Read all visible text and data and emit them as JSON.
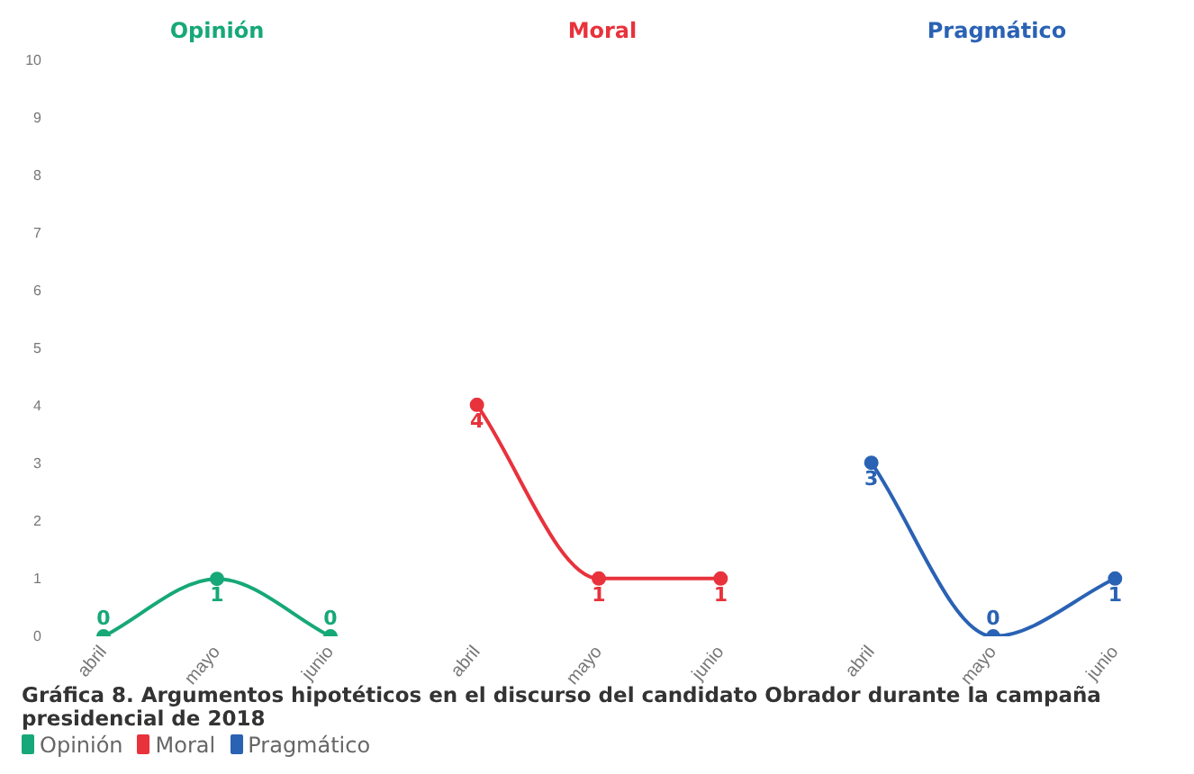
{
  "chart_data": [
    {
      "type": "line",
      "title": "Opinión",
      "categories": [
        "abril",
        "mayo",
        "junio"
      ],
      "series": [
        {
          "name": "Opinión",
          "color": "#16a878",
          "values": [
            0,
            1,
            0
          ]
        }
      ],
      "ylim": [
        0,
        10
      ],
      "yticks": [
        0,
        1,
        2,
        3,
        4,
        5,
        6,
        7,
        8,
        9,
        10
      ],
      "grid": false,
      "marker": "circle",
      "data_labels": true,
      "legend": "bottom",
      "annotations": [
        "Gráfica 8. Argumentos hipotéticos en el discurso del candidato Obrador durante la campaña presidencial de 2018"
      ]
    },
    {
      "type": "line",
      "title": "Moral",
      "categories": [
        "abril",
        "mayo",
        "junio"
      ],
      "series": [
        {
          "name": "Moral",
          "color": "#e8323c",
          "values": [
            4,
            1,
            1
          ]
        }
      ],
      "ylim": [
        0,
        10
      ],
      "yticks": [
        0,
        1,
        2,
        3,
        4,
        5,
        6,
        7,
        8,
        9,
        10
      ],
      "grid": false,
      "marker": "circle",
      "data_labels": true,
      "legend": "bottom",
      "tick_labels": "x"
    },
    {
      "type": "line",
      "title": "Pragmático",
      "categories": [
        "abril",
        "mayo",
        "junio"
      ],
      "series": [
        {
          "name": "Pragmático",
          "color": "#2a62b4",
          "values": [
            3,
            0,
            1
          ]
        }
      ],
      "ylim": [
        0,
        10
      ],
      "yticks": [
        0,
        1,
        2,
        3,
        4,
        5,
        6,
        7,
        8,
        9,
        10
      ],
      "grid": false,
      "marker": "circle",
      "data_labels": true,
      "legend": "bottom",
      "tick_labels": "x"
    }
  ]
}
